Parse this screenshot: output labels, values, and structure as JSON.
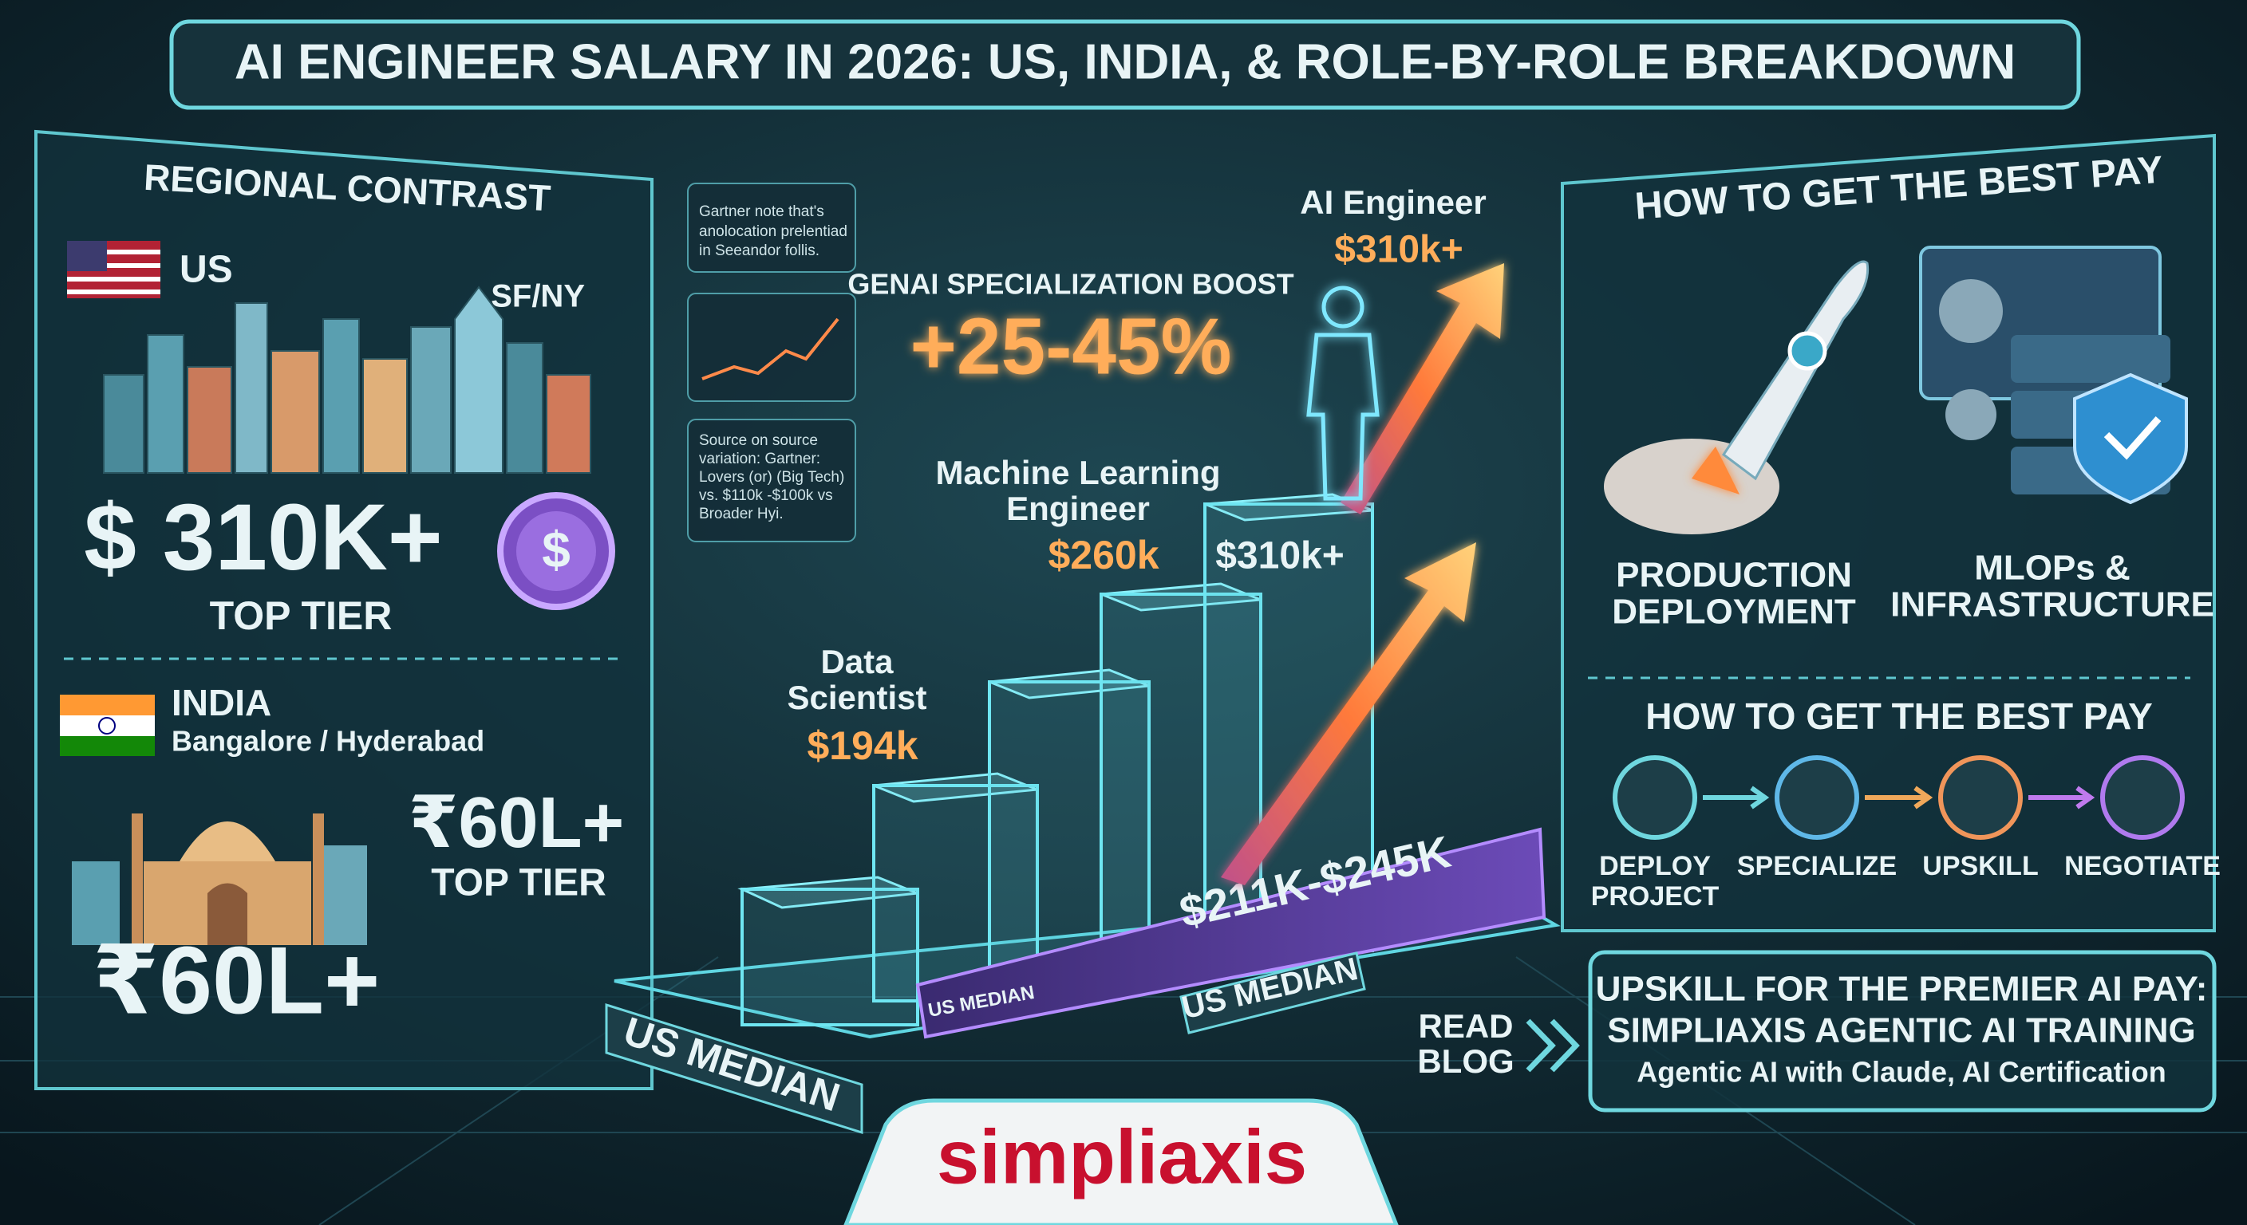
{
  "header": {
    "title": "AI ENGINEER SALARY IN 2026: US, INDIA, & ROLE-BY-ROLE BREAKDOWN"
  },
  "regional_contrast": {
    "title": "REGIONAL CONTRAST",
    "us": {
      "label": "US",
      "city": "SF/NY",
      "salary": "$ 310K+",
      "tier": "TOP TIER"
    },
    "india": {
      "label": "INDIA",
      "cities": "Bangalore / Hyderabad",
      "salary": "₹60L+",
      "tier": "TOP TIER",
      "salary_large": "₹60L+"
    }
  },
  "notes": [
    [
      "Gartner note that's",
      "anolocation prelentiad",
      "in Seeandor follis."
    ],
    [
      "Source on source",
      "variation: Gartner:",
      "Lovers (or) (Big Tech)",
      "vs. $110k -$100k vs",
      "Broader Hyi."
    ]
  ],
  "center": {
    "boost_label": "GENAI SPECIALIZATION BOOST",
    "boost_value": "+25-45%",
    "roles": [
      {
        "title": [
          "Data",
          "Scientist"
        ],
        "salary": "$194k"
      },
      {
        "title": [
          "Machine Learning",
          "Engineer"
        ],
        "salary": "$260k"
      },
      {
        "title": [
          "AI Engineer"
        ],
        "salary": "$310k+"
      }
    ],
    "step_label": "$310k+",
    "range": "$211K-$245K",
    "median_labels": [
      "US MEDIAN",
      "US MEDIAN",
      "US MEDIAN"
    ]
  },
  "best_pay": {
    "title": "HOW TO GET THE BEST PAY",
    "cards": [
      [
        "PRODUCTION",
        "DEPLOYMENT"
      ],
      [
        "MLOPs &",
        "INFRASTRUCTURE"
      ]
    ],
    "subtitle": "HOW TO GET THE BEST PAY",
    "steps": [
      [
        "DEPLOY",
        "PROJECT"
      ],
      [
        "SPECIALIZE"
      ],
      [
        "UPSKILL"
      ],
      [
        "NEGOTIATE"
      ]
    ]
  },
  "cta": {
    "read": [
      "READ",
      "BLOG"
    ],
    "lines": [
      "UPSKILL FOR THE PREMIER AI PAY:",
      "SIMPLIAXIS AGENTIC AI TRAINING",
      "Agentic AI with Claude, AI Certification"
    ]
  },
  "logo": {
    "text": "simpliaxis"
  }
}
